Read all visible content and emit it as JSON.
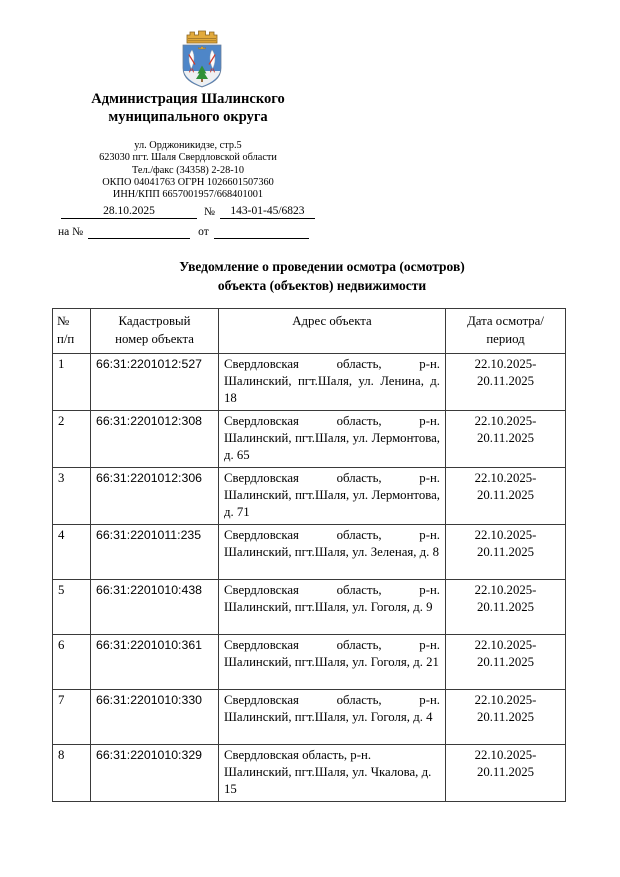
{
  "letterhead": {
    "org_name_lines": [
      "Администрация Шалинского",
      "муниципального округа"
    ],
    "address_lines": [
      "ул. Орджоникидзе, стр.5",
      "623030 пгт. Шаля Свердловской области",
      "Тел./факс (34358) 2-28-10",
      "ОКПО 04041763 ОГРН 1026601507360",
      "ИНН/КПП 6657001957/668401001"
    ],
    "emblem": {
      "name": "герб Шалинского муниципального округа",
      "crown_color": "#e2aa3c",
      "shield_color": "#4e86c8",
      "base_color": "#eef0f2",
      "tree_color": "#2f9139",
      "bird_accent_color": "#cc3b2f"
    }
  },
  "reference_block": {
    "doc_date": "28.10.2025",
    "number_sign": "№",
    "doc_number": "143-01-45/6823",
    "reply_to_label": "на №",
    "from_label": "от"
  },
  "title_lines": [
    "Уведомление о проведении осмотра (осмотров)",
    "объекта (объектов) недвижимости"
  ],
  "table": {
    "headers": [
      {
        "key": "num",
        "lines": [
          "№",
          "п/п"
        ]
      },
      {
        "key": "cadastral",
        "lines": [
          "Кадастровый",
          "номер объекта"
        ]
      },
      {
        "key": "address",
        "lines": [
          "Адрес объекта"
        ]
      },
      {
        "key": "date",
        "lines": [
          "Дата осмотра/",
          "период"
        ]
      }
    ],
    "rows": [
      {
        "num": "1",
        "cadastral": "66:31:2201012:527",
        "address": "Свердловская область, р-н. Шалинский, пгт.Шаля, ул. Ленина, д. 18",
        "date": "22.10.2025-20.11.2025"
      },
      {
        "num": "2",
        "cadastral": "66:31:2201012:308",
        "address": "Свердловская область, р-н. Шалинский, пгт.Шаля, ул. Лермонтова, д. 65",
        "date": "22.10.2025-20.11.2025"
      },
      {
        "num": "3",
        "cadastral": "66:31:2201012:306",
        "address": "Свердловская область, р-н. Шалинский, пгт.Шаля, ул. Лермонтова, д. 71",
        "date": "22.10.2025-20.11.2025"
      },
      {
        "num": "4",
        "cadastral": "66:31:2201011:235",
        "address": "Свердловская область, р-н. Шалинский, пгт.Шаля, ул. Зеленая, д. 8",
        "date": "22.10.2025-20.11.2025"
      },
      {
        "num": "5",
        "cadastral": "66:31:2201010:438",
        "address": "Свердловская область, р-н. Шалинский, пгт.Шаля, ул. Гоголя, д. 9",
        "date": "22.10.2025-20.11.2025"
      },
      {
        "num": "6",
        "cadastral": "66:31:2201010:361",
        "address": "Свердловская область, р-н. Шалинский, пгт.Шаля, ул. Гоголя, д. 21",
        "date": "22.10.2025-20.11.2025"
      },
      {
        "num": "7",
        "cadastral": "66:31:2201010:330",
        "address": "Свердловская область, р-н. Шалинский, пгт.Шаля, ул. Гоголя, д. 4",
        "date": "22.10.2025-20.11.2025"
      },
      {
        "num": "8",
        "cadastral": "66:31:2201010:329",
        "address": "Свердловская область, р-н. Шалинский, пгт.Шаля, ул. Чкалова, д. 15",
        "date": "22.10.2025-20.11.2025"
      }
    ]
  }
}
